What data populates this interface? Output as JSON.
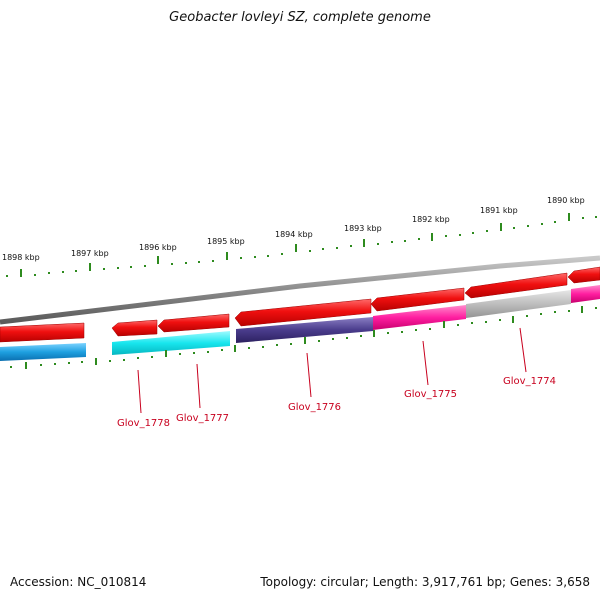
{
  "title": "Geobacter lovleyi SZ, complete genome",
  "footer": {
    "accession": "Accession: NC_010814",
    "summary": "Topology: circular; Length: 3,917,761 bp; Genes: 3,658"
  },
  "scale_labels": [
    "1898 kbp",
    "1897 kbp",
    "1896 kbp",
    "1895 kbp",
    "1894 kbp",
    "1893 kbp",
    "1892 kbp",
    "1891 kbp",
    "1890 kbp"
  ],
  "gene_labels": [
    "Glov_1778",
    "Glov_1777",
    "Glov_1776",
    "Glov_1775",
    "Glov_1774"
  ],
  "colors": {
    "backbone": "#8a8a8a",
    "forward_cds": "#ee1111",
    "tick": "#2e8b1e",
    "label": "#c8001e",
    "blue": "#1ea0e0",
    "cyan": "#18e6ee",
    "navy": "#4a3c8c",
    "magenta": "#ff1ea0",
    "gray": "#bdbdbd"
  }
}
